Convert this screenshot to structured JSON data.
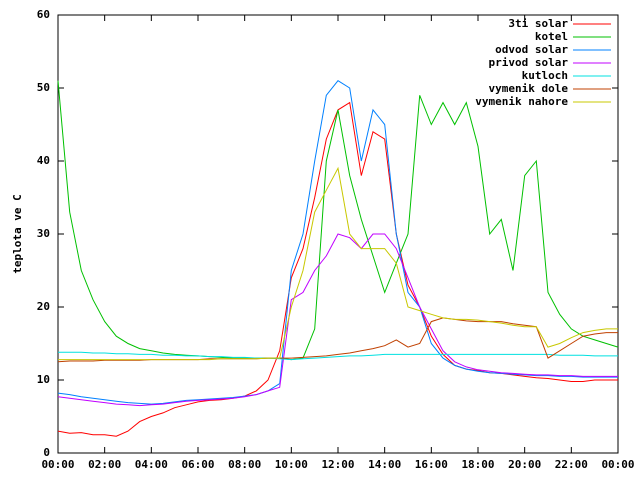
{
  "chart_data": {
    "type": "line",
    "ylabel": "teplota ve C",
    "x": [
      0,
      0.5,
      1,
      1.5,
      2,
      2.5,
      3,
      3.5,
      4,
      4.5,
      5,
      5.5,
      6,
      6.5,
      7,
      7.5,
      8,
      8.5,
      9,
      9.5,
      10,
      10.5,
      11,
      11.5,
      12,
      12.5,
      13,
      13.5,
      14,
      14.5,
      15,
      15.5,
      16,
      16.5,
      17,
      17.5,
      18,
      18.5,
      19,
      19.5,
      20,
      20.5,
      21,
      21.5,
      22,
      22.5,
      23,
      23.5,
      24
    ],
    "xlim": [
      0,
      24
    ],
    "xticks": [
      {
        "value": 0,
        "label": "00:00"
      },
      {
        "value": 2,
        "label": "02:00"
      },
      {
        "value": 4,
        "label": "04:00"
      },
      {
        "value": 6,
        "label": "06:00"
      },
      {
        "value": 8,
        "label": "08:00"
      },
      {
        "value": 10,
        "label": "10:00"
      },
      {
        "value": 12,
        "label": "12:00"
      },
      {
        "value": 14,
        "label": "14:00"
      },
      {
        "value": 16,
        "label": "16:00"
      },
      {
        "value": 18,
        "label": "18:00"
      },
      {
        "value": 20,
        "label": "20:00"
      },
      {
        "value": 22,
        "label": "22:00"
      },
      {
        "value": 24,
        "label": "00:00"
      }
    ],
    "ylim": [
      0,
      60
    ],
    "yticks": [
      0,
      10,
      20,
      30,
      40,
      50,
      60
    ],
    "legend": "top-right",
    "series": [
      {
        "name": "3ti solar",
        "color": "#ff0000",
        "values": [
          3,
          2.7,
          2.8,
          2.5,
          2.5,
          2.3,
          3,
          4.3,
          5,
          5.5,
          6.2,
          6.6,
          7,
          7.2,
          7.3,
          7.5,
          7.8,
          8.5,
          10,
          14,
          24,
          28,
          35,
          43,
          47,
          48,
          38,
          44,
          43,
          30,
          23,
          20,
          16,
          13.5,
          12,
          11.5,
          11.3,
          11,
          10.9,
          10.7,
          10.5,
          10.3,
          10.2,
          10,
          9.8,
          9.8,
          10,
          10,
          10
        ]
      },
      {
        "name": "kotel",
        "color": "#00c000",
        "values": [
          51,
          33,
          25,
          21,
          18,
          16,
          15,
          14.3,
          14,
          13.7,
          13.5,
          13.4,
          13.3,
          13.2,
          13.1,
          13,
          13,
          13,
          13,
          13,
          12.8,
          13,
          17,
          40,
          47,
          38,
          32,
          27,
          22,
          26,
          30,
          49,
          45,
          48,
          45,
          48,
          42,
          30,
          32,
          25,
          38,
          40,
          22,
          19,
          17,
          16,
          15.5,
          15,
          14.5
        ]
      },
      {
        "name": "odvod solar",
        "color": "#0080ff",
        "values": [
          8.2,
          8,
          7.7,
          7.5,
          7.3,
          7.1,
          6.9,
          6.8,
          6.7,
          6.8,
          7,
          7.2,
          7.3,
          7.4,
          7.5,
          7.6,
          7.8,
          8,
          8.5,
          9.5,
          25,
          30,
          40,
          49,
          51,
          50,
          40,
          47,
          45,
          30,
          22,
          20,
          15,
          13,
          12,
          11.5,
          11.2,
          11,
          10.9,
          10.8,
          10.7,
          10.6,
          10.6,
          10.5,
          10.5,
          10.4,
          10.4,
          10.4,
          10.4
        ]
      },
      {
        "name": "privod solar",
        "color": "#c000ff",
        "values": [
          7.7,
          7.5,
          7.3,
          7.1,
          6.9,
          6.7,
          6.6,
          6.5,
          6.6,
          6.7,
          6.9,
          7.1,
          7.2,
          7.3,
          7.4,
          7.5,
          7.7,
          8,
          8.5,
          9,
          21,
          22,
          25,
          27,
          30,
          29.5,
          28,
          30,
          30,
          28,
          24,
          20,
          17,
          14,
          12.5,
          11.8,
          11.4,
          11.2,
          11,
          10.9,
          10.8,
          10.7,
          10.7,
          10.6,
          10.6,
          10.5,
          10.5,
          10.5,
          10.5
        ]
      },
      {
        "name": "kutloch",
        "color": "#00e0e0",
        "values": [
          13.8,
          13.8,
          13.8,
          13.7,
          13.7,
          13.6,
          13.6,
          13.5,
          13.5,
          13.4,
          13.4,
          13.3,
          13.3,
          13.2,
          13.2,
          13.1,
          13.1,
          13,
          13,
          12.9,
          12.8,
          12.9,
          13,
          13.1,
          13.2,
          13.3,
          13.3,
          13.4,
          13.5,
          13.5,
          13.5,
          13.5,
          13.5,
          13.5,
          13.5,
          13.5,
          13.5,
          13.5,
          13.5,
          13.5,
          13.5,
          13.5,
          13.5,
          13.4,
          13.4,
          13.4,
          13.3,
          13.3,
          13.3
        ]
      },
      {
        "name": "vymenik dole",
        "color": "#c04000",
        "values": [
          12.5,
          12.6,
          12.6,
          12.6,
          12.7,
          12.7,
          12.7,
          12.7,
          12.8,
          12.8,
          12.8,
          12.8,
          12.8,
          12.9,
          12.9,
          12.9,
          12.9,
          12.9,
          13,
          13,
          13,
          13.1,
          13.2,
          13.3,
          13.5,
          13.7,
          14,
          14.3,
          14.7,
          15.5,
          14.5,
          15,
          18,
          18.5,
          18.3,
          18.1,
          18,
          18,
          18,
          17.7,
          17.5,
          17.3,
          13,
          14,
          15,
          16,
          16.3,
          16.5,
          16.5
        ]
      },
      {
        "name": "vymenik nahore",
        "color": "#c8c800",
        "values": [
          12.8,
          12.8,
          12.8,
          12.8,
          12.8,
          12.8,
          12.8,
          12.8,
          12.8,
          12.8,
          12.8,
          12.8,
          12.8,
          12.8,
          12.9,
          12.9,
          12.9,
          12.9,
          13,
          13,
          20,
          25,
          33,
          36,
          39,
          30,
          28,
          28,
          28,
          26,
          20,
          19.5,
          19,
          18.5,
          18.3,
          18.3,
          18.2,
          18,
          17.8,
          17.5,
          17.3,
          17.3,
          14.5,
          15,
          15.8,
          16.5,
          16.8,
          17,
          17
        ]
      }
    ]
  }
}
